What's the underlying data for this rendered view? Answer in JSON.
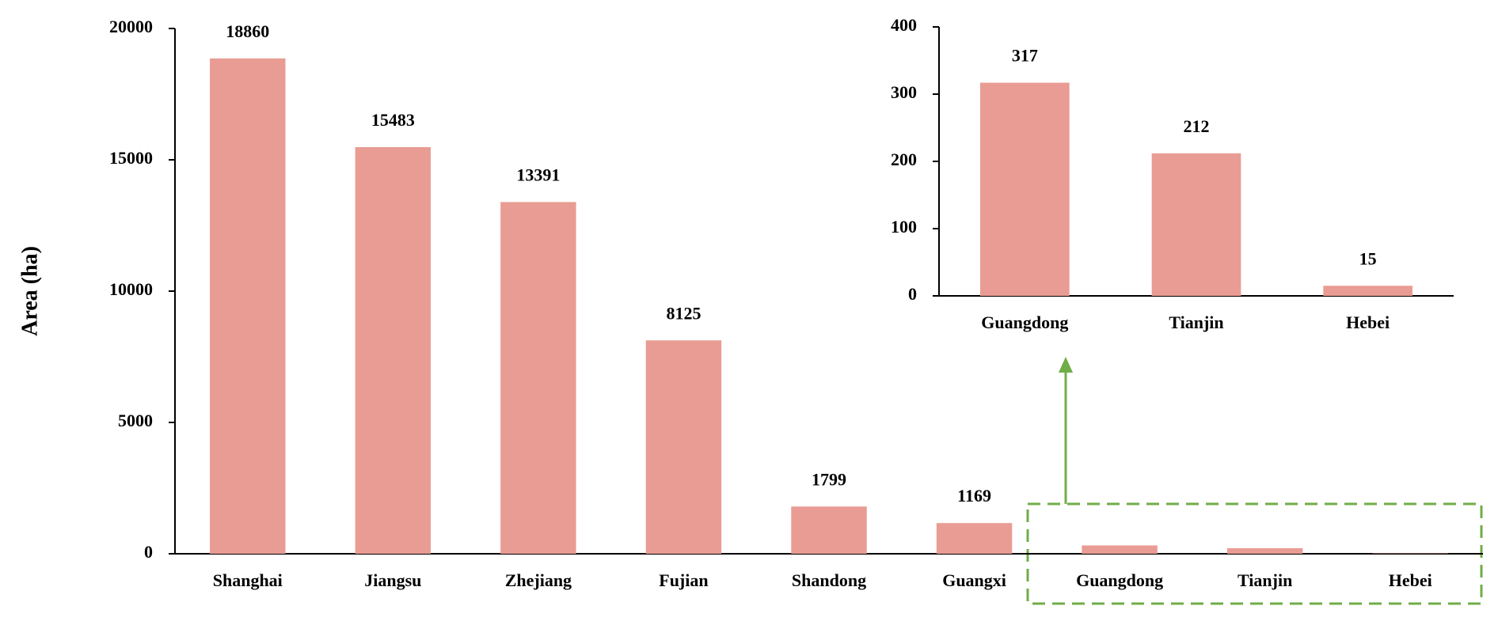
{
  "chart_data": [
    {
      "type": "bar",
      "y_label": "Area (ha)",
      "categories": [
        "Shanghai",
        "Jiangsu",
        "Zhejiang",
        "Fujian",
        "Shandong",
        "Guangxi",
        "Guangdong",
        "Tianjin",
        "Hebei"
      ],
      "values": [
        18860,
        15483,
        13391,
        8125,
        1799,
        1169,
        317,
        212,
        15
      ],
      "value_labels": [
        "18860",
        "15483",
        "13391",
        "8125",
        "1799",
        "1169",
        null,
        null,
        null
      ],
      "color": "#e99c94",
      "ylim": [
        0,
        20000
      ],
      "yticks": [
        0,
        5000,
        10000,
        15000,
        20000
      ],
      "grid": false
    },
    {
      "type": "bar",
      "categories": [
        "Guangdong",
        "Tianjin",
        "Hebei"
      ],
      "values": [
        317,
        212,
        15
      ],
      "color": "#e99c94",
      "ylim": [
        0,
        400
      ],
      "yticks": [
        0,
        100,
        200,
        300,
        400
      ],
      "grid": false
    }
  ]
}
